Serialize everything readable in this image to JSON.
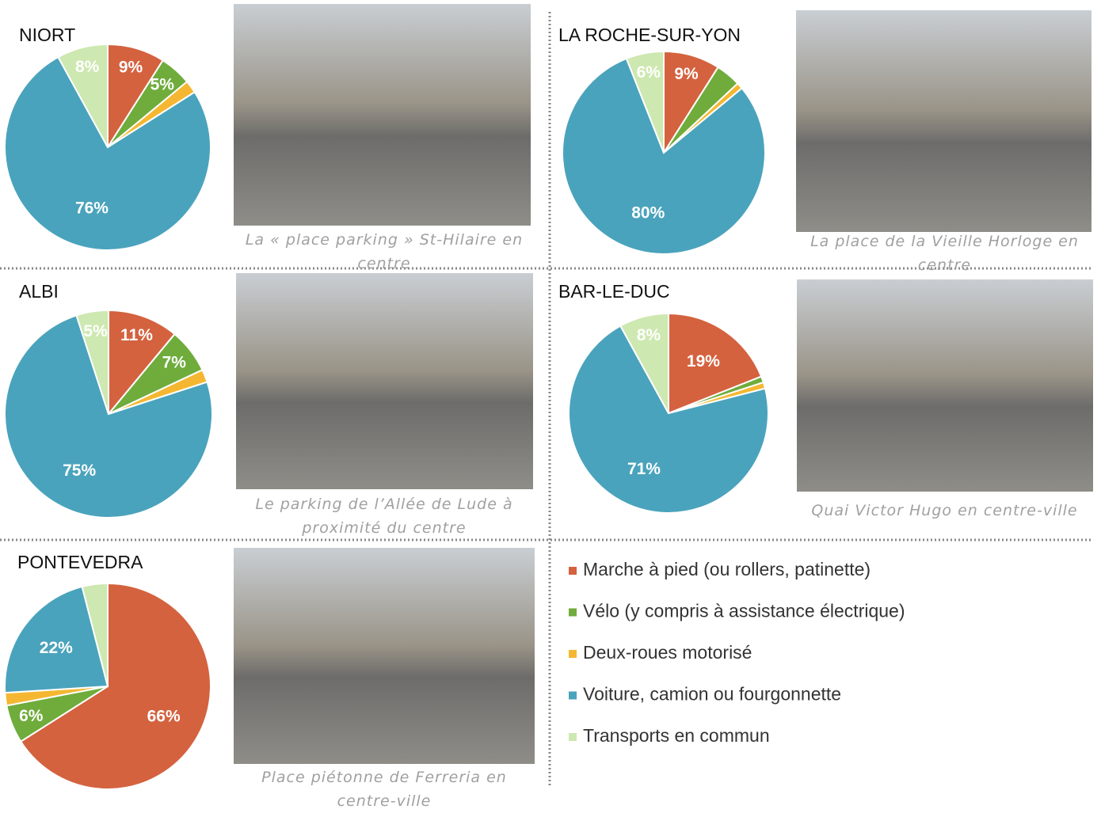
{
  "chart_data": [
    {
      "type": "pie",
      "title": "NIORT",
      "values": [
        9,
        5,
        2,
        76,
        8
      ],
      "value_labels": [
        "9%",
        "5%",
        null,
        "76%",
        "8%"
      ],
      "caption": "La « place parking » St-Hilaire en centre"
    },
    {
      "type": "pie",
      "title": "LA ROCHE-SUR-YON",
      "values": [
        9,
        4,
        1,
        80,
        6
      ],
      "value_labels": [
        "9%",
        null,
        null,
        "80%",
        "6%"
      ],
      "caption": "La place de la Vieille Horloge en centre"
    },
    {
      "type": "pie",
      "title": "ALBI",
      "values": [
        11,
        7,
        2,
        75,
        5
      ],
      "value_labels": [
        "11%",
        "7%",
        null,
        "75%",
        "5%"
      ],
      "caption": "Le parking de l’Allée de Lude à proximité du centre"
    },
    {
      "type": "pie",
      "title": "BAR-LE-DUC",
      "values": [
        19,
        1,
        1,
        71,
        8
      ],
      "value_labels": [
        "19%",
        null,
        null,
        "71%",
        "8%"
      ],
      "caption": "Quai Victor Hugo en centre-ville"
    },
    {
      "type": "pie",
      "title": "PONTEVEDRA",
      "values": [
        66,
        6,
        2,
        22,
        4
      ],
      "value_labels": [
        "66%",
        "6%",
        null,
        "22%",
        null
      ],
      "caption": "Place piétonne de Ferreria en centre-ville"
    }
  ],
  "legend": {
    "categories": [
      "Marche à pied (ou rollers, patinette)",
      "Vélo (y compris à assistance électrique)",
      "Deux-roues motorisé",
      "Voiture, camion ou fourgonnette",
      "Transports en commun"
    ],
    "colors": [
      "#d4623f",
      "#6fac3c",
      "#f5b731",
      "#4aa3bc",
      "#cde8b0"
    ]
  }
}
